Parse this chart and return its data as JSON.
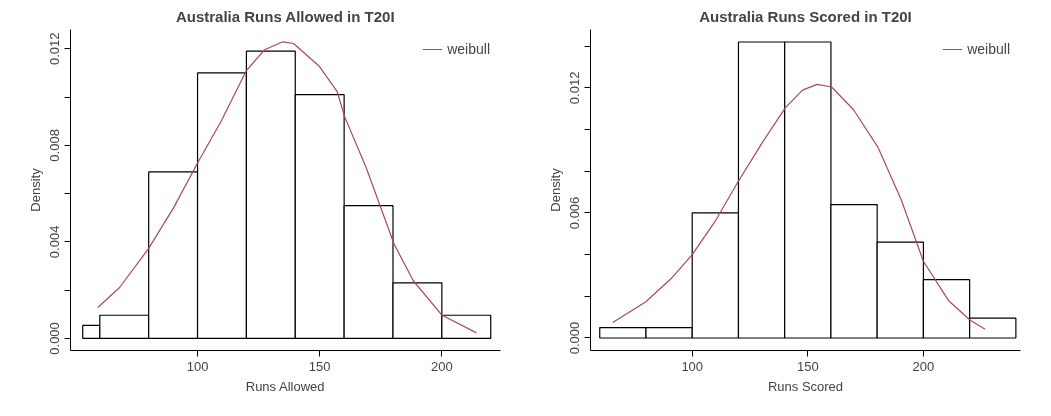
{
  "chart_data": [
    {
      "type": "histogram",
      "title": "Australia Runs Allowed in T20I",
      "xlabel": "Runs Allowed",
      "ylabel": "Density",
      "bins": [
        53,
        60,
        80,
        100,
        120,
        140,
        160,
        180,
        200,
        220
      ],
      "values": [
        0.00054,
        0.00096,
        0.0069,
        0.011,
        0.0119,
        0.0101,
        0.0055,
        0.0023,
        0.00096
      ],
      "color": "#ffffff",
      "series": [
        {
          "name": "weibull",
          "type": "line",
          "color": "#a84a5e",
          "x": [
            59.2,
            68.1,
            80,
            90.4,
            100,
            109.6,
            120,
            127.4,
            134.9,
            139.3,
            149.7,
            157.1,
            160.2,
            169,
            180.4,
            188.3,
            200.1,
            214.2
          ],
          "values": [
            0.00128,
            0.00211,
            0.00373,
            0.00545,
            0.00727,
            0.00899,
            0.0111,
            0.01196,
            0.01229,
            0.01222,
            0.01129,
            0.01024,
            0.00919,
            0.00708,
            0.00392,
            0.00239,
            0.00096,
            0.00023
          ]
        }
      ],
      "xlim": [
        48,
        224
      ],
      "ylim": [
        -0.0005,
        0.0128
      ],
      "xticks": [
        100,
        150,
        200
      ],
      "yticks": [
        {
          "value": 0,
          "label": "0.000"
        },
        {
          "value": 0.002,
          "label": null
        },
        {
          "value": 0.004,
          "label": "0.004"
        },
        {
          "value": 0.006,
          "label": null
        },
        {
          "value": 0.008,
          "label": "0.008"
        },
        {
          "value": 0.01,
          "label": null
        },
        {
          "value": 0.012,
          "label": "0.012"
        }
      ],
      "legend": "top right",
      "grid": false
    },
    {
      "type": "histogram",
      "title": "Australia Runs Scored in T20I",
      "xlabel": "Runs Scored",
      "ylabel": "Density",
      "bins": [
        60,
        80,
        100,
        120,
        140,
        160,
        180,
        200,
        220,
        240
      ],
      "values": [
        0.0005,
        0.0005,
        0.006,
        0.0142,
        0.0142,
        0.0064,
        0.0046,
        0.0028,
        0.00095
      ],
      "color": "#ffffff",
      "series": [
        {
          "name": "weibull",
          "type": "line",
          "color": "#a84a5e",
          "x": [
            65.6,
            79.8,
            90.8,
            100,
            109.8,
            119.7,
            130.3,
            140.3,
            147.7,
            154,
            160.3,
            169.8,
            180.3,
            190.4,
            200,
            210.9,
            220.4,
            226.7
          ],
          "values": [
            0.00074,
            0.00173,
            0.00284,
            0.004,
            0.00558,
            0.00747,
            0.00937,
            0.01105,
            0.01189,
            0.01217,
            0.01204,
            0.01095,
            0.00916,
            0.00663,
            0.00368,
            0.00179,
            0.00084,
            0.00042
          ]
        }
      ],
      "xlim": [
        56,
        242
      ],
      "ylim": [
        -0.0006,
        0.0148
      ],
      "xticks": [
        100,
        150,
        200
      ],
      "yticks": [
        {
          "value": 0,
          "label": "0.000"
        },
        {
          "value": 0.002,
          "label": null
        },
        {
          "value": 0.004,
          "label": null
        },
        {
          "value": 0.006,
          "label": "0.006"
        },
        {
          "value": 0.008,
          "label": null
        },
        {
          "value": 0.01,
          "label": null
        },
        {
          "value": 0.012,
          "label": "0.012"
        },
        {
          "value": 0.014,
          "label": null
        }
      ],
      "legend": "top right",
      "grid": false
    }
  ]
}
